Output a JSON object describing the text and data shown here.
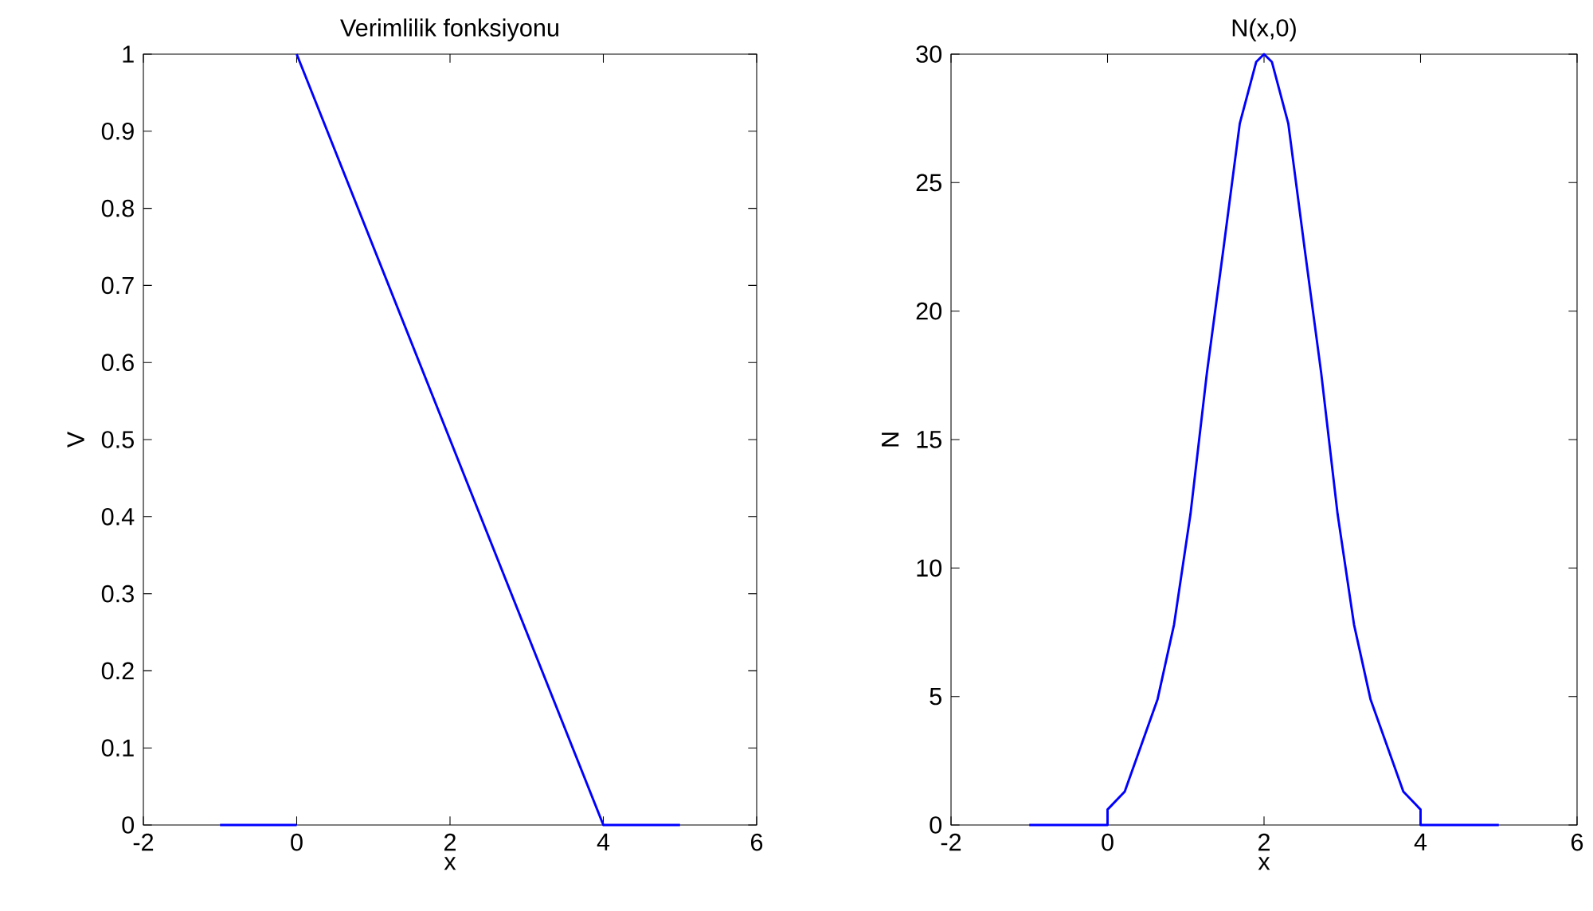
{
  "chart_data": [
    {
      "type": "line",
      "title": "Verimlilik fonksiyonu",
      "xlabel": "x",
      "ylabel": "V",
      "series": [
        {
          "color": "#0000ff",
          "x": [
            -1,
            0
          ],
          "values": [
            0,
            0
          ]
        },
        {
          "color": "#0000ff",
          "x": [
            0,
            4,
            5
          ],
          "values": [
            1,
            0,
            0
          ]
        }
      ],
      "xlim": [
        -2,
        6
      ],
      "ylim": [
        0,
        1
      ],
      "xticks": [
        -2,
        0,
        2,
        4,
        6
      ],
      "yticks": [
        0,
        0.1,
        0.2,
        0.3,
        0.4,
        0.5,
        0.6,
        0.7,
        0.8,
        0.9,
        1
      ]
    },
    {
      "type": "line",
      "title": "N(x,0)",
      "xlabel": "x",
      "ylabel": "N",
      "series": [
        {
          "color": "#0000ff",
          "x": [
            -1,
            0,
            0,
            0.22,
            0.43,
            0.64,
            0.85,
            1.06,
            1.27,
            1.48,
            1.69,
            1.9,
            2,
            2.1,
            2.31,
            2.52,
            2.73,
            2.94,
            3.15,
            3.36,
            3.57,
            3.78,
            4,
            4,
            5
          ],
          "values": [
            0,
            0,
            0.6,
            1.3,
            3.1,
            4.9,
            7.8,
            12.1,
            17.6,
            22.4,
            27.3,
            29.7,
            30,
            29.7,
            27.3,
            22.4,
            17.6,
            12.1,
            7.8,
            4.9,
            3.1,
            1.3,
            0.6,
            0,
            0
          ]
        }
      ],
      "xlim": [
        -2,
        6
      ],
      "ylim": [
        0,
        30
      ],
      "xticks": [
        -2,
        0,
        2,
        4,
        6
      ],
      "yticks": [
        0,
        5,
        10,
        15,
        20,
        25,
        30
      ]
    }
  ]
}
